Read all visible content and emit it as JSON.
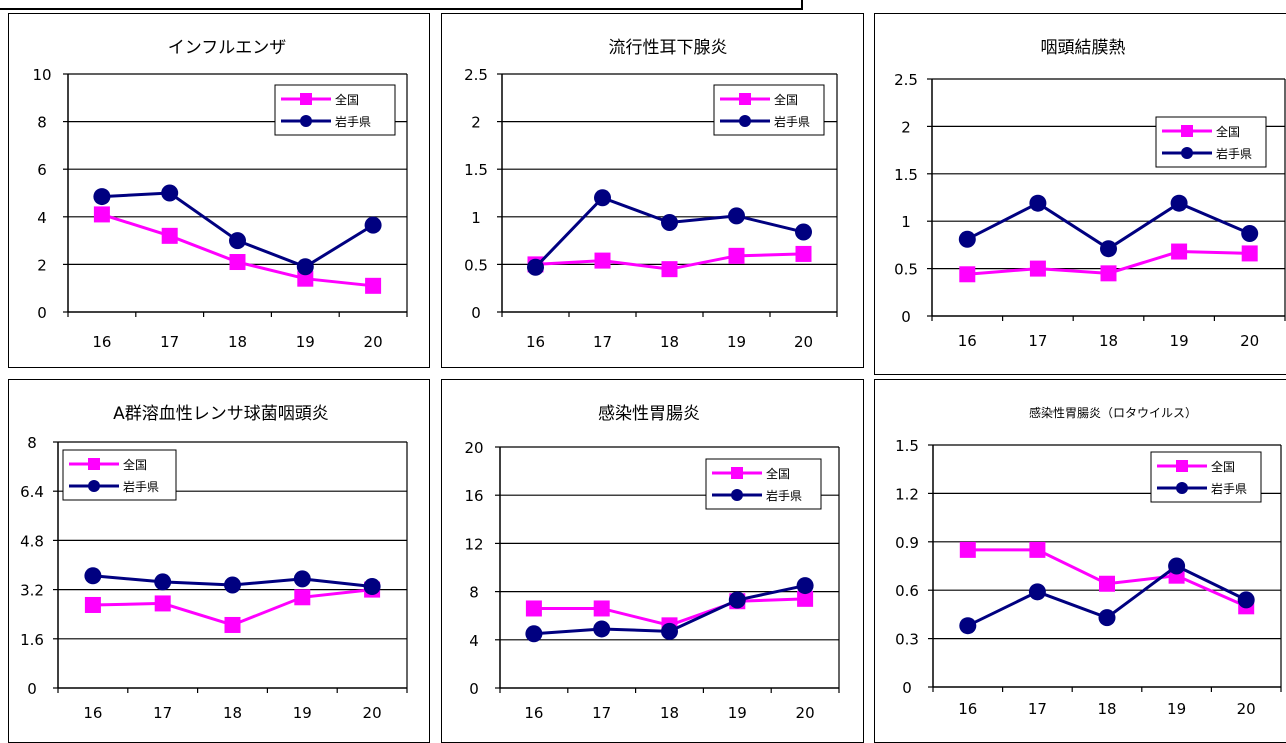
{
  "legend_labels": {
    "national": "全国",
    "iwate": "岩手県"
  },
  "colors": {
    "national": "#ff00ff",
    "iwate": "#000080"
  },
  "chart_data": [
    {
      "type": "line",
      "title": "インフルエンザ",
      "categories": [
        "16",
        "17",
        "18",
        "19",
        "20"
      ],
      "ylim": [
        0,
        10
      ],
      "yticks": [
        "0",
        "2",
        "4",
        "6",
        "8",
        "10"
      ],
      "legend": "top-right",
      "grid": true,
      "series": [
        {
          "name": "全国",
          "values": [
            4.1,
            3.2,
            2.1,
            1.4,
            1.1
          ]
        },
        {
          "name": "岩手県",
          "values": [
            4.85,
            5.0,
            3.0,
            1.9,
            3.65
          ]
        }
      ]
    },
    {
      "type": "line",
      "title": "流行性耳下腺炎",
      "categories": [
        "16",
        "17",
        "18",
        "19",
        "20"
      ],
      "ylim": [
        0,
        2.5
      ],
      "yticks": [
        "0",
        "0.5",
        "1",
        "1.5",
        "2",
        "2.5"
      ],
      "legend": "top-right",
      "grid": true,
      "series": [
        {
          "name": "全国",
          "values": [
            0.5,
            0.54,
            0.45,
            0.59,
            0.61
          ]
        },
        {
          "name": "岩手県",
          "values": [
            0.47,
            1.2,
            0.94,
            1.01,
            0.84
          ]
        }
      ]
    },
    {
      "type": "line",
      "title": "咽頭結膜熱",
      "categories": [
        "16",
        "17",
        "18",
        "19",
        "20"
      ],
      "ylim": [
        0,
        2.5
      ],
      "yticks": [
        "0",
        "0.5",
        "1",
        "1.5",
        "2",
        "2.5"
      ],
      "legend": "top-right",
      "grid": true,
      "series": [
        {
          "name": "全国",
          "values": [
            0.44,
            0.5,
            0.45,
            0.68,
            0.66
          ]
        },
        {
          "name": "岩手県",
          "values": [
            0.81,
            1.19,
            0.71,
            1.19,
            0.87
          ]
        }
      ]
    },
    {
      "type": "line",
      "title": "A群溶血性レンサ球菌咽頭炎",
      "categories": [
        "16",
        "17",
        "18",
        "19",
        "20"
      ],
      "ylim": [
        0,
        8
      ],
      "yticks": [
        "0",
        "1.6",
        "3.2",
        "4.8",
        "6.4",
        "8"
      ],
      "legend": "top-left",
      "grid": true,
      "series": [
        {
          "name": "全国",
          "values": [
            2.7,
            2.75,
            2.05,
            2.95,
            3.2
          ]
        },
        {
          "name": "岩手県",
          "values": [
            3.65,
            3.45,
            3.35,
            3.55,
            3.3
          ]
        }
      ]
    },
    {
      "type": "line",
      "title": "感染性胃腸炎",
      "categories": [
        "16",
        "17",
        "18",
        "19",
        "20"
      ],
      "ylim": [
        0,
        20
      ],
      "yticks": [
        "0",
        "4",
        "8",
        "12",
        "16",
        "20"
      ],
      "legend": "top-right",
      "grid": true,
      "series": [
        {
          "name": "全国",
          "values": [
            6.6,
            6.6,
            5.2,
            7.2,
            7.4
          ]
        },
        {
          "name": "岩手県",
          "values": [
            4.5,
            4.9,
            4.7,
            7.3,
            8.5
          ]
        }
      ]
    },
    {
      "type": "line",
      "title": "感染性胃腸炎（ロタウイルス）",
      "categories": [
        "16",
        "17",
        "18",
        "19",
        "20"
      ],
      "ylim": [
        0,
        1.5
      ],
      "yticks": [
        "0",
        "0.3",
        "0.6",
        "0.9",
        "1.2",
        "1.5"
      ],
      "legend": "top-right",
      "grid": true,
      "series": [
        {
          "name": "全国",
          "values": [
            0.85,
            0.85,
            0.64,
            0.69,
            0.5
          ]
        },
        {
          "name": "岩手県",
          "values": [
            0.38,
            0.59,
            0.43,
            0.75,
            0.54
          ]
        }
      ]
    }
  ]
}
